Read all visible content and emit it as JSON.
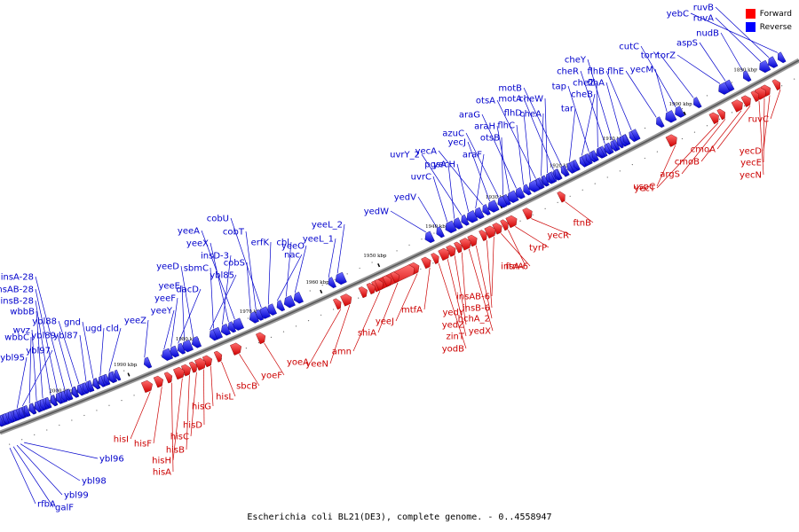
{
  "title": "Escherichia coli BL21(DE3), complete genome. - 0..4558947",
  "colors": {
    "forward": "#ff0000",
    "reverse": "#0000ff",
    "backbone": "#888888"
  },
  "legend": [
    {
      "label": "Forward",
      "color": "#ff0000"
    },
    {
      "label": "Reverse",
      "color": "#0000ff"
    }
  ],
  "ticks": [
    "1890 kbp",
    "1900 kbp",
    "1910 kbp",
    "1920 kbp",
    "1930 kbp",
    "1940 kbp",
    "1950 kbp",
    "1960 kbp",
    "1970 kbp",
    "1980 kbp",
    "1990 kbp",
    "2000 kbp"
  ],
  "reverse_genes": [
    "yebC",
    "ruvB",
    "ruvA",
    "nudB",
    "aspS",
    "torZ",
    "torY",
    "cutC",
    "yecM",
    "flhE",
    "flhB",
    "flhA",
    "cheY",
    "cheR",
    "cheZ",
    "tap",
    "cheB",
    "tar",
    "motB",
    "motA",
    "cheW",
    "cheA",
    "otsA",
    "flhD",
    "flhC",
    "araG",
    "araH",
    "otsB",
    "azuC",
    "yecJ",
    "yecA",
    "araF",
    "yecH",
    "uvrY_2",
    "pgsA",
    "uvrC",
    "yedV",
    "yedW",
    "yeeL_2",
    "yeeL_1",
    "yeeO",
    "cbl",
    "nac",
    "erfK",
    "cobU",
    "cobT",
    "cobS",
    "yeeA",
    "yeeX",
    "insD-3",
    "sbmC",
    "ybl85",
    "yeeD",
    "yeeE",
    "dacD",
    "yeeF",
    "yeeY",
    "yeeZ",
    "cld",
    "ugd",
    "gnd",
    "ybl87",
    "ybl88",
    "ybl89",
    "insA-28",
    "insAB-28",
    "insB-28",
    "wbbB",
    "wvz",
    "wbbC",
    "ybl97",
    "ybl95",
    "ybl96",
    "ybl98",
    "ybl99",
    "galF",
    "rfbA"
  ],
  "forward_genes": [
    "ruvC",
    "yecD",
    "yecE",
    "yecN",
    "cmoA",
    "cmoB",
    "argS",
    "yecT",
    "uspC",
    "ftnB",
    "yecR",
    "tyrP",
    "ftnA",
    "insA-6",
    "insAB-6",
    "insB-6",
    "hchA_2",
    "yedX",
    "yedY",
    "yedZ",
    "zinT",
    "yodB",
    "mtfA",
    "yeeJ",
    "shiA",
    "amn",
    "yeeN",
    "yoeA",
    "yoeF",
    "sbcB",
    "hisL",
    "hisG",
    "hisD",
    "hisC",
    "hisB",
    "hisH",
    "hisA",
    "hisF",
    "hisI"
  ]
}
